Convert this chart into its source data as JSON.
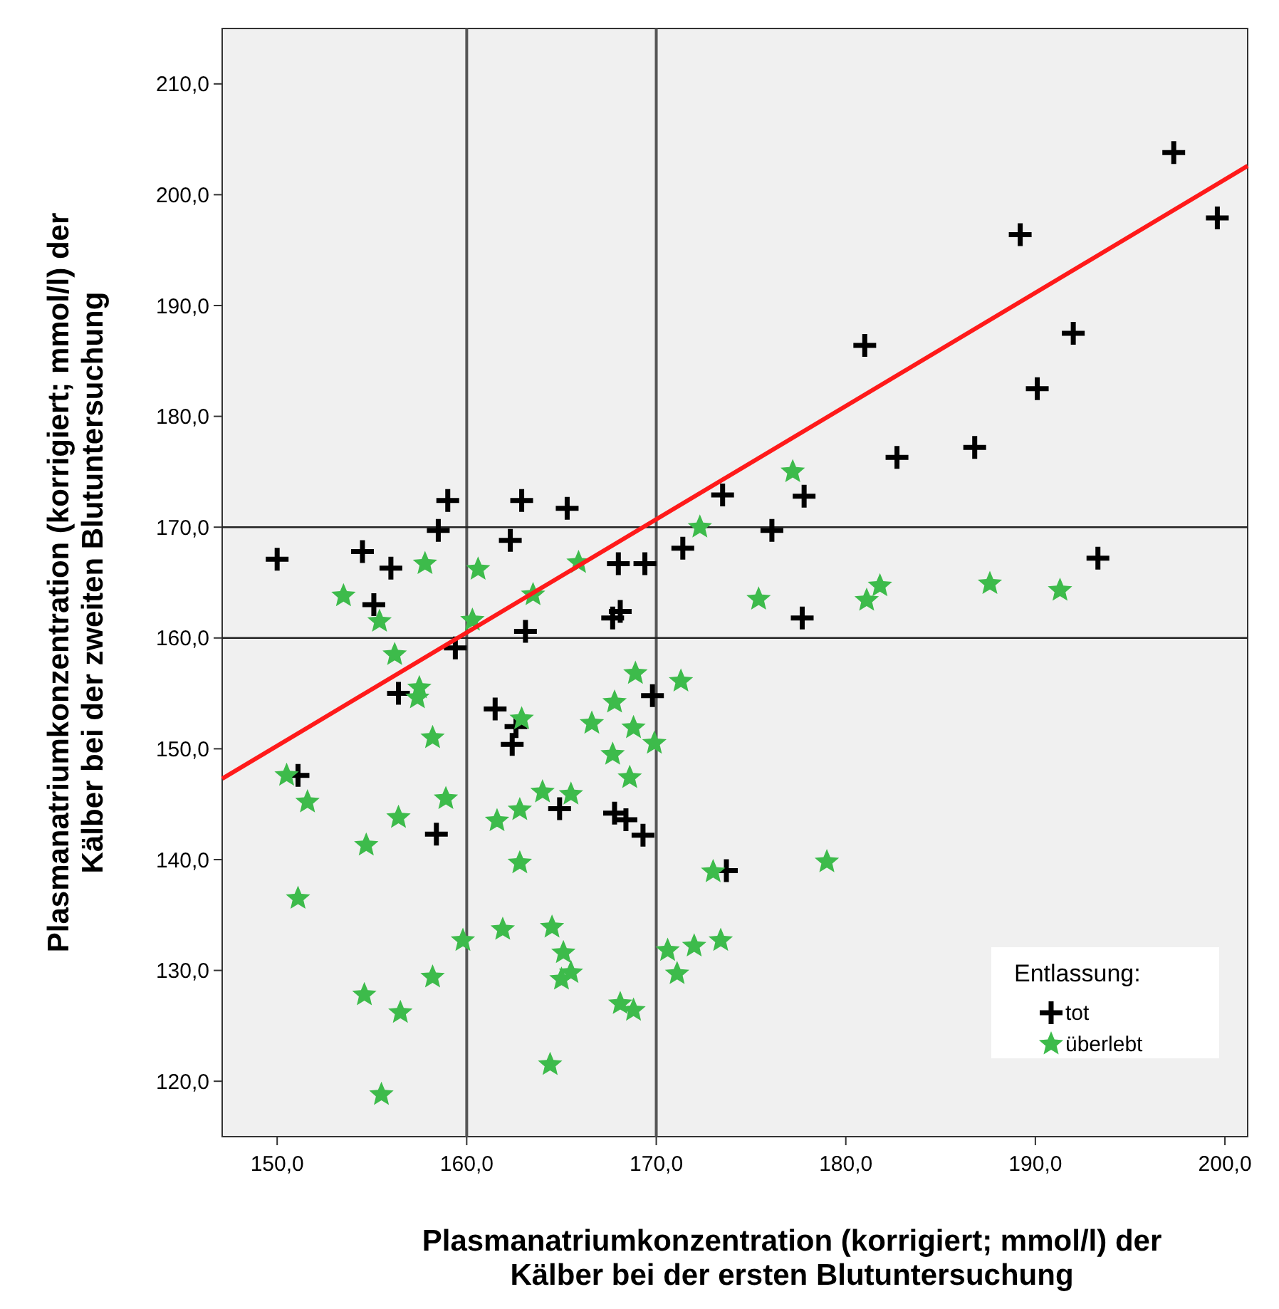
{
  "chart_data": {
    "type": "scatter",
    "xlabel": "Plasmanatriumkonzentration (korrigiert; mmol/l) der Kälber bei der ersten Blutuntersuchung",
    "ylabel": "Plasmanatriumkonzentration (korrigiert; mmol/l) der Kälber bei der zweiten Blutuntersuchung",
    "legend_title": "Entlassung:",
    "legend": "bottom right",
    "grid": false,
    "xlim": [
      147.1,
      201.2
    ],
    "ylim": [
      115,
      215
    ],
    "xticks": [
      {
        "value": 150,
        "label": "150,0"
      },
      {
        "value": 160,
        "label": "160,0"
      },
      {
        "value": 170,
        "label": "170,0"
      },
      {
        "value": 180,
        "label": "180,0"
      },
      {
        "value": 190,
        "label": "190,0"
      },
      {
        "value": 200,
        "label": "200,0"
      }
    ],
    "yticks": [
      {
        "value": 120,
        "label": "120,0"
      },
      {
        "value": 130,
        "label": "130,0"
      },
      {
        "value": 140,
        "label": "140,0"
      },
      {
        "value": 150,
        "label": "150,0"
      },
      {
        "value": 160,
        "label": "160,0"
      },
      {
        "value": 170,
        "label": "170,0"
      },
      {
        "value": 180,
        "label": "180,0"
      },
      {
        "value": 190,
        "label": "190,0"
      },
      {
        "value": 200,
        "label": "200,0"
      },
      {
        "value": 210,
        "label": "210,0"
      }
    ],
    "ref_lines": [
      {
        "axis": "x",
        "value": 160,
        "color": "#555555"
      },
      {
        "axis": "x",
        "value": 170,
        "color": "#555555"
      },
      {
        "axis": "y",
        "value": 160,
        "color": "#222222"
      },
      {
        "axis": "y",
        "value": 170,
        "color": "#222222"
      }
    ],
    "series": [
      {
        "name": "tot",
        "color": "#000000",
        "marker": "cross",
        "x": [
          150.0,
          154.5,
          156.0,
          155.1,
          159.0,
          158.5,
          162.3,
          162.9,
          163.1,
          165.3,
          168.0,
          169.4,
          167.7,
          168.1,
          159.4,
          156.4,
          161.5,
          162.4,
          162.6,
          169.8,
          171.4,
          173.5,
          176.1,
          177.8,
          177.7,
          181.0,
          182.7,
          186.8,
          189.2,
          190.1,
          192.0,
          197.3,
          199.6,
          193.3,
          151.1,
          158.4,
          164.9,
          167.8,
          168.4,
          169.3,
          173.7
        ],
        "values": [
          167.1,
          167.8,
          166.3,
          163.0,
          172.4,
          169.7,
          168.8,
          172.4,
          160.6,
          171.7,
          166.7,
          166.7,
          161.8,
          162.4,
          159.1,
          155.0,
          153.6,
          150.4,
          152.0,
          154.8,
          168.1,
          172.9,
          169.7,
          172.8,
          161.8,
          186.4,
          176.3,
          177.2,
          196.4,
          182.5,
          187.5,
          203.8,
          197.9,
          167.2,
          147.6,
          142.3,
          144.6,
          144.2,
          143.6,
          142.2,
          139.0
        ]
      },
      {
        "name": "überlebt",
        "color": "#3dbb4b",
        "marker": "star",
        "x": [
          153.5,
          155.4,
          156.2,
          157.5,
          157.4,
          157.8,
          160.6,
          160.3,
          165.9,
          163.5,
          172.3,
          175.4,
          168.9,
          171.3,
          167.8,
          177.2,
          181.1,
          181.8,
          187.6,
          191.3,
          150.5,
          151.6,
          156.4,
          154.7,
          151.1,
          158.2,
          158.9,
          159.8,
          158.2,
          154.6,
          156.5,
          155.5,
          162.9,
          166.6,
          168.8,
          169.9,
          167.7,
          168.6,
          164.0,
          165.5,
          162.8,
          161.6,
          162.8,
          173.0,
          179.0,
          161.9,
          164.5,
          165.1,
          165.0,
          165.5,
          168.1,
          168.8,
          164.4,
          170.6,
          172.0,
          173.4,
          171.1
        ],
        "values": [
          163.8,
          161.5,
          158.5,
          155.5,
          154.6,
          166.7,
          166.2,
          161.6,
          166.8,
          163.9,
          170.0,
          163.5,
          156.8,
          156.1,
          154.2,
          175.0,
          163.4,
          164.7,
          164.9,
          164.3,
          147.6,
          145.2,
          143.8,
          141.3,
          136.5,
          151.0,
          145.5,
          132.7,
          129.4,
          127.8,
          126.2,
          118.8,
          152.7,
          152.3,
          151.9,
          150.5,
          149.5,
          147.4,
          146.1,
          145.9,
          144.5,
          143.5,
          139.7,
          138.9,
          139.8,
          133.7,
          133.9,
          131.6,
          129.2,
          129.8,
          127.0,
          126.4,
          121.5,
          131.8,
          132.2,
          132.7,
          129.7
        ]
      },
      {
        "type": "line",
        "color": "#ff1a1a",
        "marker": "none",
        "line_style": "solid",
        "x": [
          147.1,
          201.2
        ],
        "values": [
          147.3,
          202.6
        ]
      }
    ]
  }
}
